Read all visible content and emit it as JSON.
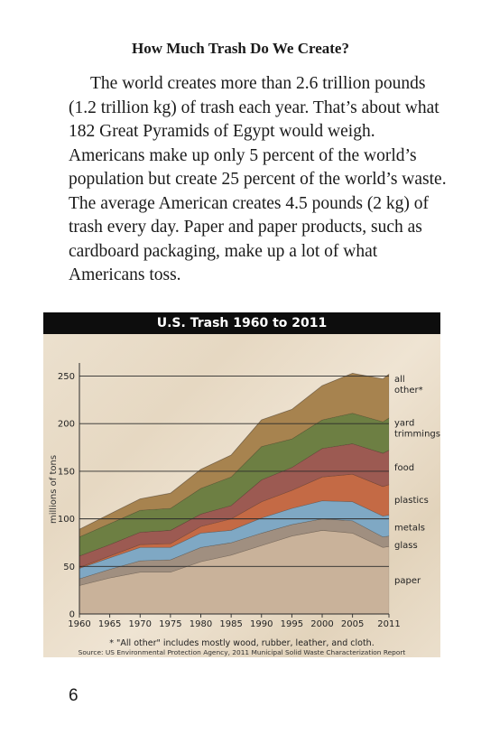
{
  "page": {
    "heading": "How Much Trash Do We Create?",
    "paragraph": "The world creates more than 2.6 trillion pounds (1.2 trillion kg) of trash each year. That’s about what 182 Great Pyramids of Egypt would weigh. Americans make up only 5 percent of the world’s population but create 25 percent of the world’s waste. The average American creates 4.5 pounds (2 kg) of trash every day. Paper and paper products, such as cardboard packaging, make up a lot of what Americans toss.",
    "page_number": "6"
  },
  "chart_data": {
    "type": "area",
    "title": "U.S. Trash 1960 to 2011",
    "xlabel": "",
    "ylabel": "millions of tons",
    "x": [
      1960,
      1965,
      1970,
      1975,
      1980,
      1985,
      1990,
      1995,
      2000,
      2005,
      2010,
      2011
    ],
    "x_ticks": [
      1960,
      1965,
      1970,
      1975,
      1980,
      1985,
      1990,
      1995,
      2000,
      2005,
      2011
    ],
    "y_ticks": [
      0,
      50,
      100,
      150,
      200,
      250
    ],
    "ylim": [
      0,
      260
    ],
    "grid": "horizontal",
    "stacked": true,
    "series": [
      {
        "name": "paper",
        "color": "#c9b29a",
        "values": [
          30,
          38,
          44,
          44,
          55,
          62,
          72,
          82,
          88,
          85,
          70,
          71
        ]
      },
      {
        "name": "glass",
        "color": "#a08f80",
        "values": [
          7,
          9,
          12,
          13,
          15,
          13,
          13,
          12,
          12,
          13,
          11,
          11
        ]
      },
      {
        "name": "metals",
        "color": "#7fa8c4",
        "values": [
          11,
          12,
          14,
          13,
          15,
          13,
          16,
          17,
          19,
          20,
          22,
          22
        ]
      },
      {
        "name": "plastics",
        "color": "#c46a45",
        "values": [
          1,
          2,
          3,
          4,
          7,
          12,
          17,
          19,
          25,
          29,
          31,
          32
        ]
      },
      {
        "name": "food",
        "color": "#9c5a52",
        "values": [
          12,
          12,
          13,
          14,
          13,
          14,
          23,
          24,
          30,
          32,
          35,
          36
        ]
      },
      {
        "name": "yard trimmings",
        "color": "#6d7f43",
        "values": [
          20,
          22,
          23,
          23,
          27,
          30,
          35,
          30,
          30,
          32,
          33,
          34
        ]
      },
      {
        "name": "all other",
        "color": "#a7834f",
        "values": [
          8,
          10,
          12,
          16,
          20,
          23,
          28,
          31,
          36,
          42,
          45,
          46
        ]
      }
    ],
    "footnote": "* \"All other\" includes mostly wood, rubber, leather, and cloth.",
    "source": "Source: US Environmental Protection Agency, 2011 Municipal Solid Waste Characterization Report",
    "legend_labels": [
      "all other*",
      "yard trimmings",
      "food",
      "plastics",
      "metals",
      "glass",
      "paper"
    ],
    "legend_placement": "right"
  }
}
